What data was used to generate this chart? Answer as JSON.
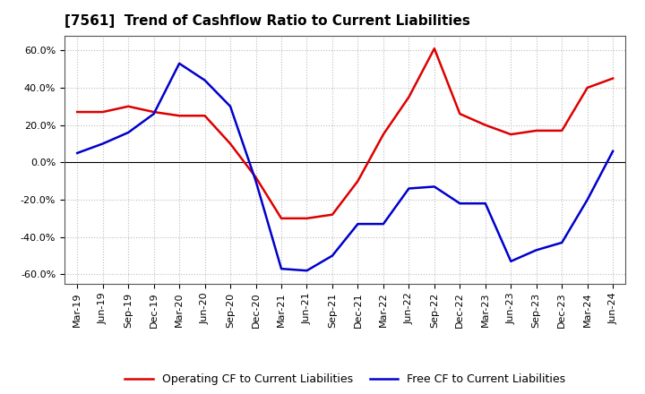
{
  "title": "[7561]  Trend of Cashflow Ratio to Current Liabilities",
  "x_labels": [
    "Mar-19",
    "Jun-19",
    "Sep-19",
    "Dec-19",
    "Mar-20",
    "Jun-20",
    "Sep-20",
    "Dec-20",
    "Mar-21",
    "Jun-21",
    "Sep-21",
    "Dec-21",
    "Mar-22",
    "Jun-22",
    "Sep-22",
    "Dec-22",
    "Mar-23",
    "Jun-23",
    "Sep-23",
    "Dec-23",
    "Mar-24",
    "Jun-24"
  ],
  "operating_cf": [
    0.27,
    0.27,
    0.3,
    0.27,
    0.25,
    0.25,
    0.1,
    -0.08,
    -0.3,
    -0.3,
    -0.28,
    -0.1,
    0.15,
    0.35,
    0.61,
    0.26,
    0.2,
    0.15,
    0.17,
    0.17,
    0.4,
    0.45
  ],
  "free_cf": [
    0.05,
    0.1,
    0.16,
    0.26,
    0.53,
    0.44,
    0.3,
    -0.1,
    -0.57,
    -0.58,
    -0.5,
    -0.33,
    -0.33,
    -0.14,
    -0.13,
    -0.22,
    -0.22,
    -0.53,
    -0.47,
    -0.43,
    -0.2,
    0.06
  ],
  "operating_cf_color": "#dd0000",
  "free_cf_color": "#0000cc",
  "ylim": [
    -0.65,
    0.68
  ],
  "yticks": [
    -0.6,
    -0.4,
    -0.2,
    0.0,
    0.2,
    0.4,
    0.6
  ],
  "legend_operating": "Operating CF to Current Liabilities",
  "legend_free": "Free CF to Current Liabilities",
  "background_color": "#ffffff",
  "grid_color": "#bbbbbb",
  "line_width": 1.8,
  "title_fontsize": 11,
  "tick_fontsize": 8,
  "legend_fontsize": 9
}
